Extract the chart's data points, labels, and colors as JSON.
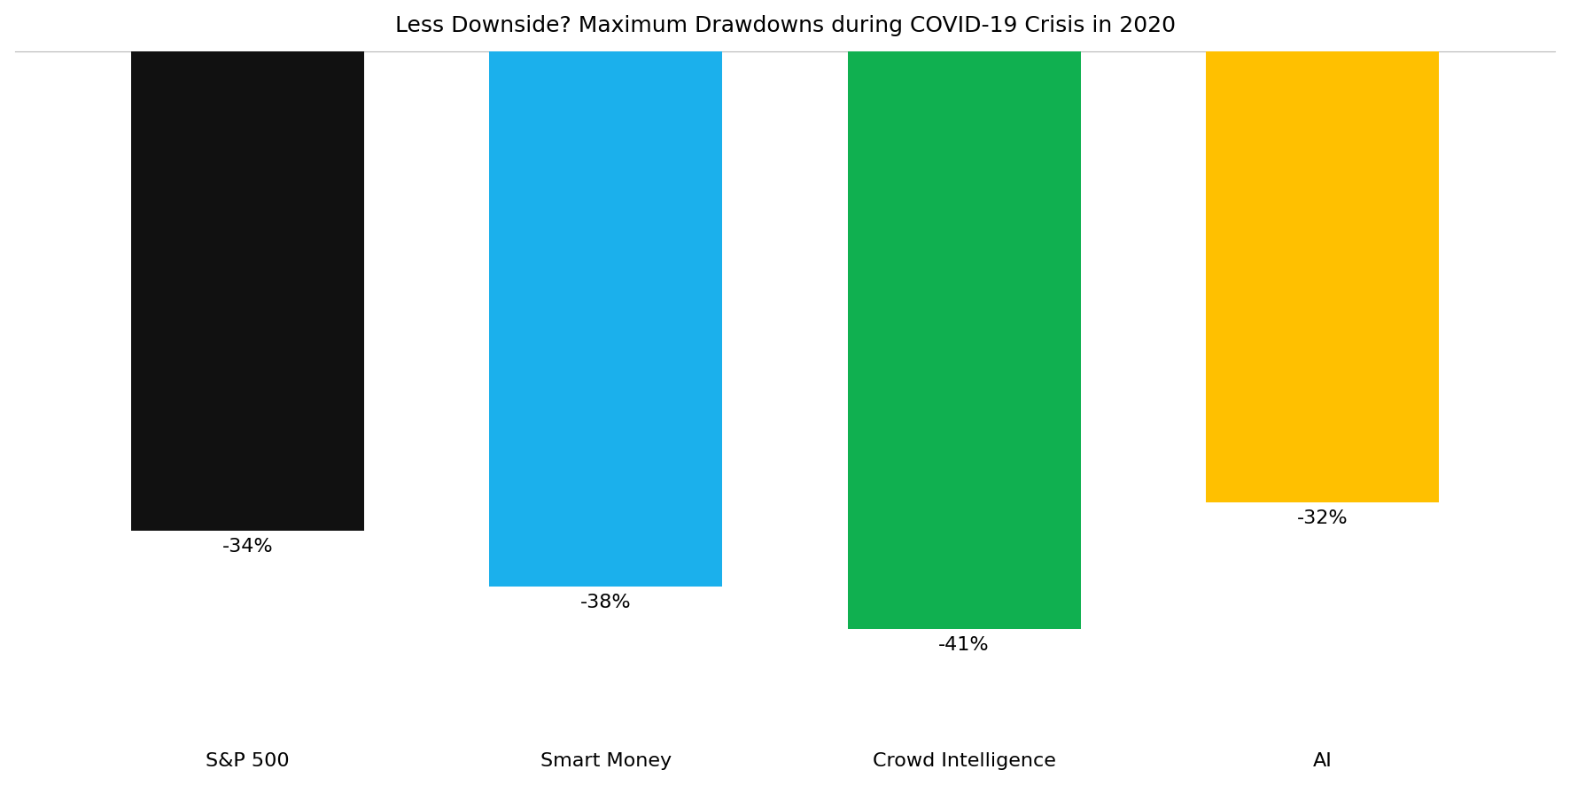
{
  "title": "Less Downside? Maximum Drawdowns during COVID-19 Crisis in 2020",
  "categories": [
    "S&P 500",
    "Smart Money",
    "Crowd Intelligence",
    "AI"
  ],
  "values": [
    -34,
    -38,
    -41,
    -32
  ],
  "labels": [
    "-34%",
    "-38%",
    "-41%",
    "-32%"
  ],
  "bar_colors": [
    "#111111",
    "#1BB0EC",
    "#10B050",
    "#FFC000"
  ],
  "ylim": [
    -48,
    0
  ],
  "title_fontsize": 18,
  "label_fontsize": 16,
  "tick_fontsize": 16,
  "background_color": "#ffffff",
  "bar_width": 0.65,
  "figsize": [
    17.72,
    8.86
  ],
  "dpi": 100
}
